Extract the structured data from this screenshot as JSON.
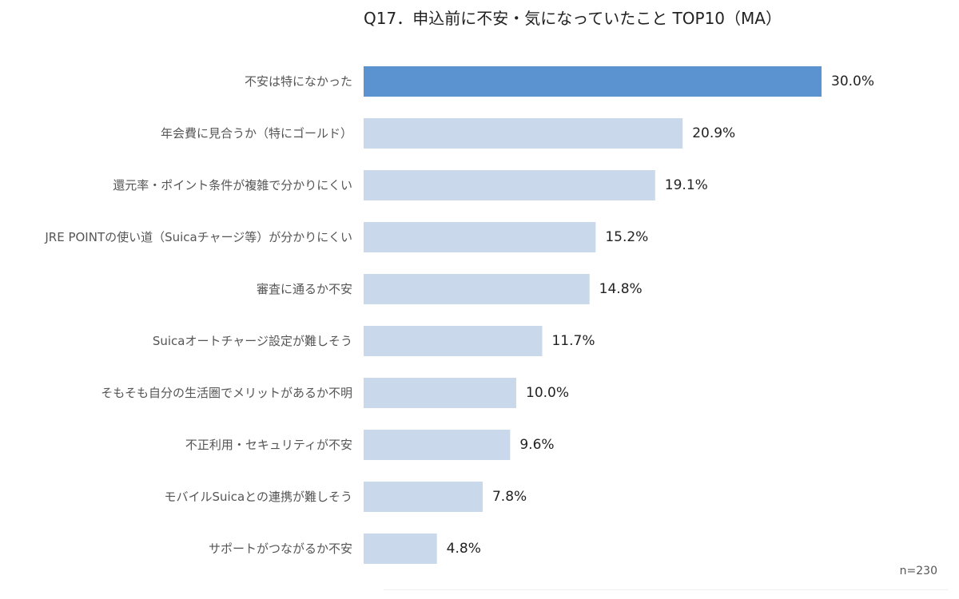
{
  "chart_data": {
    "type": "bar",
    "orientation": "horizontal",
    "title": "Q17．申込前に不安・気になっていたこと TOP10（MA）",
    "categories": [
      "不安は特になかった",
      "年会費に見合うか（特にゴールド）",
      "還元率・ポイント条件が複雑で分かりにくい",
      "JRE POINTの使い道（Suicaチャージ等）が分かりにくい",
      "審査に通るか不安",
      "Suicaオートチャージ設定が難しそう",
      "そもそも自分の生活圏でメリットがあるか不明",
      "不正利用・セキュリティが不安",
      "モバイルSuicaとの連携が難しそう",
      "サポートがつながるか不安"
    ],
    "values": [
      30.0,
      20.9,
      19.1,
      15.2,
      14.8,
      11.7,
      10.0,
      9.6,
      7.8,
      4.8
    ],
    "value_labels": [
      "30.0%",
      "20.9%",
      "19.1%",
      "15.2%",
      "14.8%",
      "11.7%",
      "10.0%",
      "9.6%",
      "7.8%",
      "4.8%"
    ],
    "xlim": [
      0,
      30.0
    ],
    "highlight_index": 0,
    "colors": {
      "highlight": "#5b93d1",
      "bar": "#c9d8ea"
    },
    "grid": false,
    "legend": "none",
    "note": "n=230"
  }
}
